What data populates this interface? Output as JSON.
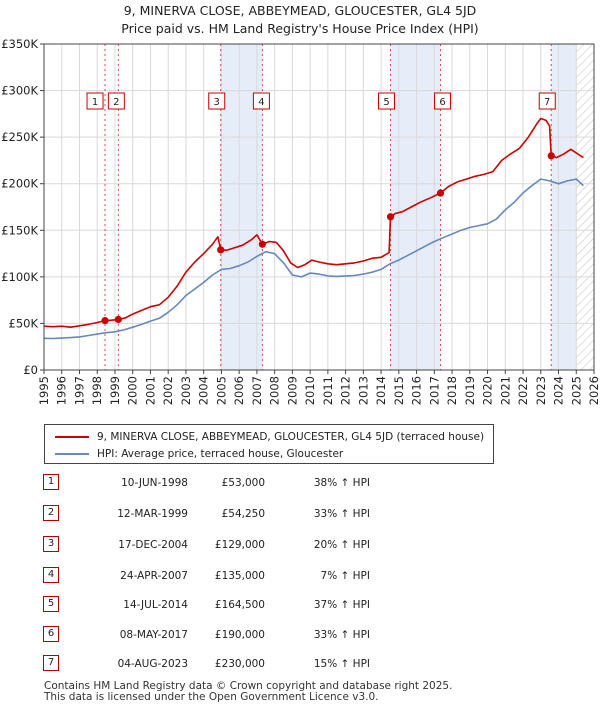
{
  "chart_data": {
    "type": "line",
    "title": "9, MINERVA CLOSE, ABBEYMEAD, GLOUCESTER, GL4 5JD",
    "subtitle": "Price paid vs. HM Land Registry's House Price Index (HPI)",
    "xlim": [
      1995,
      2026
    ],
    "ylim": [
      0,
      350000
    ],
    "x_ticks": [
      1995,
      1996,
      1997,
      1998,
      1999,
      2000,
      2001,
      2002,
      2003,
      2004,
      2005,
      2006,
      2007,
      2008,
      2009,
      2010,
      2011,
      2012,
      2013,
      2014,
      2015,
      2016,
      2017,
      2018,
      2019,
      2020,
      2021,
      2022,
      2023,
      2024,
      2025,
      2026
    ],
    "y_ticks": [
      {
        "value": 0,
        "label": "£0"
      },
      {
        "value": 50000,
        "label": "£50K"
      },
      {
        "value": 100000,
        "label": "£100K"
      },
      {
        "value": 150000,
        "label": "£150K"
      },
      {
        "value": 200000,
        "label": "£200K"
      },
      {
        "value": 250000,
        "label": "£250K"
      },
      {
        "value": 300000,
        "label": "£300K"
      },
      {
        "value": 350000,
        "label": "£350K"
      }
    ],
    "grid": true,
    "shaded_periods": [
      [
        2004.96,
        2007.31
      ],
      [
        2014.53,
        2017.35
      ],
      [
        2023.59,
        2025.0
      ]
    ],
    "future_hatch_from": 2025.0,
    "series": [
      {
        "name": "9, MINERVA CLOSE, ABBEYMEAD, GLOUCESTER, GL4 5JD (terraced house)",
        "color": "#cc0000",
        "points": [
          [
            1995.0,
            47000
          ],
          [
            1995.5,
            46500
          ],
          [
            1996.0,
            47000
          ],
          [
            1996.5,
            46000
          ],
          [
            1997.0,
            47500
          ],
          [
            1997.5,
            49000
          ],
          [
            1998.0,
            51000
          ],
          [
            1998.44,
            53000
          ],
          [
            1998.8,
            53500
          ],
          [
            1999.19,
            54250
          ],
          [
            1999.6,
            56000
          ],
          [
            2000.0,
            60000
          ],
          [
            2000.5,
            64000
          ],
          [
            2001.0,
            68000
          ],
          [
            2001.5,
            70000
          ],
          [
            2002.0,
            78000
          ],
          [
            2002.5,
            90000
          ],
          [
            2003.0,
            105000
          ],
          [
            2003.5,
            116000
          ],
          [
            2004.0,
            125000
          ],
          [
            2004.5,
            135000
          ],
          [
            2004.8,
            143000
          ],
          [
            2004.96,
            129000
          ],
          [
            2005.3,
            128500
          ],
          [
            2005.7,
            131000
          ],
          [
            2006.2,
            134000
          ],
          [
            2006.7,
            140000
          ],
          [
            2007.0,
            145000
          ],
          [
            2007.31,
            135000
          ],
          [
            2007.7,
            138000
          ],
          [
            2008.1,
            137000
          ],
          [
            2008.5,
            128000
          ],
          [
            2008.9,
            115000
          ],
          [
            2009.3,
            110000
          ],
          [
            2009.7,
            113000
          ],
          [
            2010.1,
            118000
          ],
          [
            2010.5,
            116000
          ],
          [
            2011.0,
            114000
          ],
          [
            2011.5,
            113000
          ],
          [
            2012.0,
            114000
          ],
          [
            2012.5,
            115000
          ],
          [
            2013.0,
            117000
          ],
          [
            2013.5,
            120000
          ],
          [
            2014.0,
            121000
          ],
          [
            2014.45,
            126000
          ],
          [
            2014.53,
            164500
          ],
          [
            2014.8,
            168000
          ],
          [
            2015.2,
            170000
          ],
          [
            2015.7,
            175000
          ],
          [
            2016.2,
            180000
          ],
          [
            2016.8,
            185000
          ],
          [
            2017.35,
            190000
          ],
          [
            2017.8,
            197000
          ],
          [
            2018.3,
            202000
          ],
          [
            2018.8,
            205000
          ],
          [
            2019.3,
            208000
          ],
          [
            2019.8,
            210000
          ],
          [
            2020.3,
            213000
          ],
          [
            2020.8,
            225000
          ],
          [
            2021.3,
            232000
          ],
          [
            2021.8,
            238000
          ],
          [
            2022.3,
            250000
          ],
          [
            2022.8,
            265000
          ],
          [
            2023.0,
            270000
          ],
          [
            2023.3,
            268000
          ],
          [
            2023.5,
            262000
          ],
          [
            2023.59,
            230000
          ],
          [
            2023.9,
            228000
          ],
          [
            2024.3,
            232000
          ],
          [
            2024.7,
            237000
          ],
          [
            2025.0,
            233000
          ],
          [
            2025.4,
            228000
          ]
        ]
      },
      {
        "name": "HPI: Average price, terraced house, Gloucester",
        "color": "#6688bb",
        "points": [
          [
            1995.0,
            34000
          ],
          [
            1995.5,
            33800
          ],
          [
            1996.0,
            34200
          ],
          [
            1996.5,
            34800
          ],
          [
            1997.0,
            35500
          ],
          [
            1997.5,
            37000
          ],
          [
            1998.0,
            38500
          ],
          [
            1998.5,
            40000
          ],
          [
            1999.0,
            41000
          ],
          [
            1999.5,
            43000
          ],
          [
            2000.0,
            46000
          ],
          [
            2000.5,
            49000
          ],
          [
            2001.0,
            52500
          ],
          [
            2001.5,
            55500
          ],
          [
            2002.0,
            62000
          ],
          [
            2002.5,
            70000
          ],
          [
            2003.0,
            80000
          ],
          [
            2003.5,
            87000
          ],
          [
            2004.0,
            94000
          ],
          [
            2004.5,
            102000
          ],
          [
            2005.0,
            108000
          ],
          [
            2005.5,
            109000
          ],
          [
            2006.0,
            112000
          ],
          [
            2006.5,
            116000
          ],
          [
            2007.0,
            122000
          ],
          [
            2007.5,
            127000
          ],
          [
            2008.0,
            125000
          ],
          [
            2008.5,
            115000
          ],
          [
            2009.0,
            102000
          ],
          [
            2009.5,
            100000
          ],
          [
            2010.0,
            104000
          ],
          [
            2010.5,
            103000
          ],
          [
            2011.0,
            101000
          ],
          [
            2011.5,
            100500
          ],
          [
            2012.0,
            101000
          ],
          [
            2012.5,
            101500
          ],
          [
            2013.0,
            103000
          ],
          [
            2013.5,
            105000
          ],
          [
            2014.0,
            108000
          ],
          [
            2014.5,
            114000
          ],
          [
            2015.0,
            118000
          ],
          [
            2015.5,
            123000
          ],
          [
            2016.0,
            128000
          ],
          [
            2016.5,
            133000
          ],
          [
            2017.0,
            138000
          ],
          [
            2017.5,
            142000
          ],
          [
            2018.0,
            146000
          ],
          [
            2018.5,
            150000
          ],
          [
            2019.0,
            153000
          ],
          [
            2019.5,
            155000
          ],
          [
            2020.0,
            157000
          ],
          [
            2020.5,
            162000
          ],
          [
            2021.0,
            172000
          ],
          [
            2021.5,
            180000
          ],
          [
            2022.0,
            190000
          ],
          [
            2022.5,
            198000
          ],
          [
            2023.0,
            205000
          ],
          [
            2023.5,
            203000
          ],
          [
            2024.0,
            200000
          ],
          [
            2024.5,
            203000
          ],
          [
            2025.0,
            205000
          ],
          [
            2025.4,
            198000
          ]
        ]
      }
    ],
    "sale_markers": [
      {
        "label": "1",
        "x": 1998.44,
        "y": 53000
      },
      {
        "label": "2",
        "x": 1999.19,
        "y": 54250
      },
      {
        "label": "3",
        "x": 2004.96,
        "y": 129000
      },
      {
        "label": "4",
        "x": 2007.31,
        "y": 135000
      },
      {
        "label": "5",
        "x": 2014.53,
        "y": 164500
      },
      {
        "label": "6",
        "x": 2017.35,
        "y": 190000
      },
      {
        "label": "7",
        "x": 2023.59,
        "y": 230000
      }
    ]
  },
  "legend": {
    "property_label": "9, MINERVA CLOSE, ABBEYMEAD, GLOUCESTER, GL4 5JD (terraced house)",
    "hpi_label": "HPI: Average price, terraced house, Gloucester"
  },
  "sales": [
    {
      "num": "1",
      "date": "10-JUN-1998",
      "price": "£53,000",
      "hpi": "38% ↑ HPI"
    },
    {
      "num": "2",
      "date": "12-MAR-1999",
      "price": "£54,250",
      "hpi": "33% ↑ HPI"
    },
    {
      "num": "3",
      "date": "17-DEC-2004",
      "price": "£129,000",
      "hpi": "20% ↑ HPI"
    },
    {
      "num": "4",
      "date": "24-APR-2007",
      "price": "£135,000",
      "hpi": "7% ↑ HPI"
    },
    {
      "num": "5",
      "date": "14-JUL-2014",
      "price": "£164,500",
      "hpi": "37% ↑ HPI"
    },
    {
      "num": "6",
      "date": "08-MAY-2017",
      "price": "£190,000",
      "hpi": "33% ↑ HPI"
    },
    {
      "num": "7",
      "date": "04-AUG-2023",
      "price": "£230,000",
      "hpi": "15% ↑ HPI"
    }
  ],
  "footer": {
    "line1": "Contains HM Land Registry data © Crown copyright and database right 2025.",
    "line2": "This data is licensed under the Open Government Licence v3.0."
  }
}
